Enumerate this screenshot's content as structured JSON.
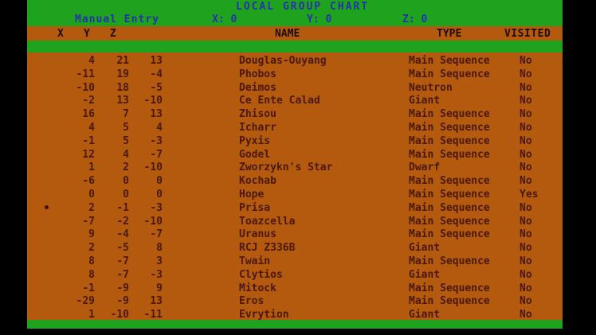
{
  "title": "LOCAL GROUP CHART",
  "toolbar": {
    "mode_label": "Manual Entry",
    "coord_x": "X: 0",
    "coord_y": "Y: 0",
    "coord_z": "Z: 0"
  },
  "table": {
    "headers": {
      "x": "X",
      "y": "Y",
      "z": "Z",
      "name": "NAME",
      "type": "TYPE",
      "visited": "VISITED"
    },
    "marker_row_index": 11,
    "rows": [
      {
        "x": "4",
        "y": "21",
        "z": "13",
        "name": "Douglas-Ouyang",
        "type": "Main Sequence",
        "visited": "No"
      },
      {
        "x": "-11",
        "y": "19",
        "z": "-4",
        "name": "Phobos",
        "type": "Main Sequence",
        "visited": "No"
      },
      {
        "x": "-10",
        "y": "18",
        "z": "-5",
        "name": "Deimos",
        "type": "Neutron",
        "visited": "No"
      },
      {
        "x": "-2",
        "y": "13",
        "z": "-10",
        "name": "Ce Ente Calad",
        "type": "Giant",
        "visited": "No"
      },
      {
        "x": "16",
        "y": "7",
        "z": "13",
        "name": "Zhisou",
        "type": "Main Sequence",
        "visited": "No"
      },
      {
        "x": "4",
        "y": "5",
        "z": "4",
        "name": "Icharr",
        "type": "Main Sequence",
        "visited": "No"
      },
      {
        "x": "-1",
        "y": "5",
        "z": "-3",
        "name": "Pyxis",
        "type": "Main Sequence",
        "visited": "No"
      },
      {
        "x": "12",
        "y": "4",
        "z": "-7",
        "name": "Godel",
        "type": "Main Sequence",
        "visited": "No"
      },
      {
        "x": "1",
        "y": "2",
        "z": "-10",
        "name": "Zworzykn's Star",
        "type": "Dwarf",
        "visited": "No"
      },
      {
        "x": "-6",
        "y": "0",
        "z": "0",
        "name": "Kochab",
        "type": "Main Sequence",
        "visited": "No"
      },
      {
        "x": "0",
        "y": "0",
        "z": "0",
        "name": "Hope",
        "type": "Main Sequence",
        "visited": "Yes"
      },
      {
        "x": "2",
        "y": "-1",
        "z": "-3",
        "name": "Prisa",
        "type": "Main Sequence",
        "visited": "No"
      },
      {
        "x": "-7",
        "y": "-2",
        "z": "-10",
        "name": "Toazcella",
        "type": "Main Sequence",
        "visited": "No"
      },
      {
        "x": "9",
        "y": "-4",
        "z": "-7",
        "name": "Uranus",
        "type": "Main Sequence",
        "visited": "No"
      },
      {
        "x": "2",
        "y": "-5",
        "z": "8",
        "name": "RCJ Z336B",
        "type": "Giant",
        "visited": "No"
      },
      {
        "x": "8",
        "y": "-7",
        "z": "3",
        "name": "Twain",
        "type": "Main Sequence",
        "visited": "No"
      },
      {
        "x": "8",
        "y": "-7",
        "z": "-3",
        "name": "Clytios",
        "type": "Giant",
        "visited": "No"
      },
      {
        "x": "-1",
        "y": "-9",
        "z": "9",
        "name": "Mitock",
        "type": "Main Sequence",
        "visited": "No"
      },
      {
        "x": "-29",
        "y": "-9",
        "z": "13",
        "name": "Eros",
        "type": "Main Sequence",
        "visited": "No"
      },
      {
        "x": "1",
        "y": "-10",
        "z": "-11",
        "name": "Evrytion",
        "type": "Giant",
        "visited": "No"
      }
    ]
  },
  "colors": {
    "background": "#000000",
    "screen_green": "#1fa31f",
    "panel_orange": "#b45a0e",
    "title_blue": "#2632a8",
    "header_text": "#1e0d02",
    "body_text": "#4a1805"
  }
}
